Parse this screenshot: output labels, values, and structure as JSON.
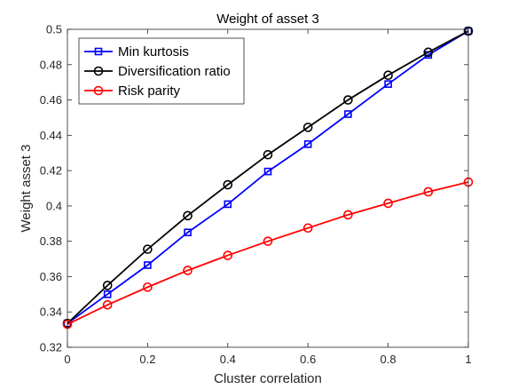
{
  "chart_data": {
    "type": "line",
    "title": "Weight of asset 3",
    "xlabel": "Cluster correlation",
    "ylabel": "Weight asset 3",
    "xlim": [
      0,
      1
    ],
    "ylim": [
      0.32,
      0.5
    ],
    "xticks": [
      0,
      0.2,
      0.4,
      0.6,
      0.8,
      1
    ],
    "xtick_labels": [
      "0",
      "0.2",
      "0.4",
      "0.6",
      "0.8",
      "1"
    ],
    "yticks": [
      0.32,
      0.34,
      0.36,
      0.38,
      0.4,
      0.42,
      0.44,
      0.46,
      0.48,
      0.5
    ],
    "ytick_labels": [
      "0.32",
      "0.34",
      "0.36",
      "0.38",
      "0.4",
      "0.42",
      "0.44",
      "0.46",
      "0.48",
      "0.5"
    ],
    "grid": false,
    "legend_position": "top-left",
    "x": [
      0,
      0.1,
      0.2,
      0.3,
      0.4,
      0.5,
      0.6,
      0.7,
      0.8,
      0.9,
      1
    ],
    "series": [
      {
        "name": "Min kurtosis",
        "color": "#0000ff",
        "marker": "square",
        "values": [
          0.3335,
          0.35,
          0.3665,
          0.385,
          0.401,
          0.4195,
          0.435,
          0.452,
          0.469,
          0.4855,
          0.499
        ]
      },
      {
        "name": "Diversification ratio",
        "color": "#000000",
        "marker": "circle",
        "values": [
          0.3335,
          0.355,
          0.3755,
          0.3945,
          0.412,
          0.429,
          0.4445,
          0.46,
          0.474,
          0.487,
          0.499
        ]
      },
      {
        "name": "Risk parity",
        "color": "#ff0000",
        "marker": "circle",
        "values": [
          0.333,
          0.344,
          0.354,
          0.3635,
          0.372,
          0.38,
          0.3875,
          0.395,
          0.4015,
          0.408,
          0.4135
        ]
      }
    ]
  }
}
